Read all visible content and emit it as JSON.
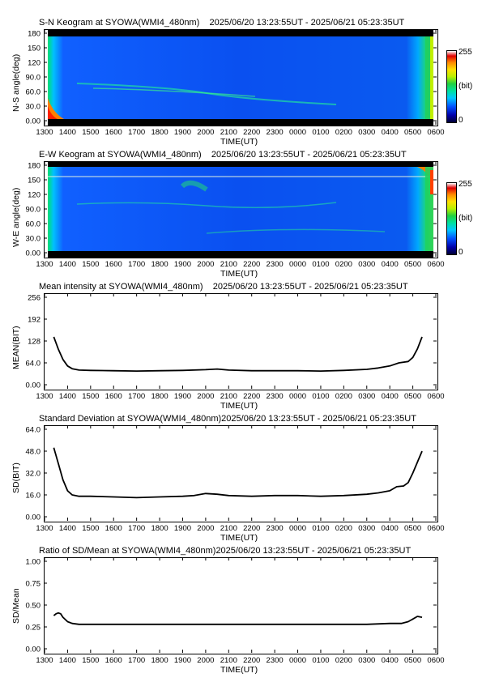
{
  "panels": [
    {
      "title": "S-N Keogram at SYOWA(WMI4_480nm)    2025/06/20 13:23:55UT - 2025/06/21 05:23:35UT",
      "ylabel": "N-S angle(deg)",
      "xlabel": "TIME(UT)"
    },
    {
      "title": "E-W Keogram at SYOWA(WMI4_480nm)    2025/06/20 13:23:55UT - 2025/06/21 05:23:35UT",
      "ylabel": "W-E angle(deg)",
      "xlabel": "TIME(UT)"
    },
    {
      "title": "Mean intensity at SYOWA(WMI4_480nm)    2025/06/20 13:23:55UT - 2025/06/21 05:23:35UT",
      "ylabel": "MEAN(BIT)",
      "xlabel": "TIME(UT)"
    },
    {
      "title": "Standard Deviation at SYOWA(WMI4_480nm)2025/06/20 13:23:55UT - 2025/06/21 05:23:35UT",
      "ylabel": "SD(BIT)",
      "xlabel": "TIME(UT)"
    },
    {
      "title": "Ratio of SD/Mean at SYOWA(WMI4_480nm)2025/06/20 13:23:55UT - 2025/06/21 05:23:35UT",
      "ylabel": "SD/Mean",
      "xlabel": "TIME(UT)"
    }
  ],
  "colorbar": {
    "max": "255",
    "unit": "(bit)",
    "min": "0"
  },
  "chart_data": [
    {
      "type": "heatmap",
      "title": "S-N Keogram at SYOWA(WMI4_480nm)    2025/06/20 13:23:55UT - 2025/06/21 05:23:35UT",
      "xlabel": "TIME(UT)",
      "ylabel": "N-S angle(deg)",
      "x_ticks": [
        "1300",
        "1400",
        "1500",
        "1600",
        "1700",
        "1800",
        "1900",
        "2000",
        "2100",
        "2200",
        "2300",
        "0000",
        "0100",
        "0200",
        "0300",
        "0400",
        "0500",
        "0600"
      ],
      "y_ticks": [
        "0.00",
        "30.0",
        "60.0",
        "90.0",
        "120",
        "150",
        "180"
      ],
      "ylim": [
        0,
        180
      ],
      "colorbar": {
        "min": 0,
        "max": 255,
        "unit": "(bit)"
      }
    },
    {
      "type": "heatmap",
      "title": "E-W Keogram at SYOWA(WMI4_480nm)    2025/06/20 13:23:55UT - 2025/06/21 05:23:35UT",
      "xlabel": "TIME(UT)",
      "ylabel": "W-E angle(deg)",
      "x_ticks": [
        "1300",
        "1400",
        "1500",
        "1600",
        "1700",
        "1800",
        "1900",
        "2000",
        "2100",
        "2200",
        "2300",
        "0000",
        "0100",
        "0200",
        "0300",
        "0400",
        "0500",
        "0600"
      ],
      "y_ticks": [
        "0.00",
        "30.0",
        "60.0",
        "90.0",
        "120",
        "150",
        "180"
      ],
      "ylim": [
        0,
        180
      ],
      "colorbar": {
        "min": 0,
        "max": 255,
        "unit": "(bit)"
      }
    },
    {
      "type": "line",
      "title": "Mean intensity at SYOWA(WMI4_480nm)    2025/06/20 13:23:55UT - 2025/06/21 05:23:35UT",
      "xlabel": "TIME(UT)",
      "ylabel": "MEAN(BIT)",
      "x_ticks": [
        "1300",
        "1400",
        "1500",
        "1600",
        "1700",
        "1800",
        "1900",
        "2000",
        "2100",
        "2200",
        "2300",
        "0000",
        "0100",
        "0200",
        "0300",
        "0400",
        "0500",
        "0600"
      ],
      "y_ticks": [
        "0.00",
        "64.0",
        "128",
        "192",
        "256"
      ],
      "ylim": [
        0,
        256
      ],
      "x_hours": [
        13.4,
        13.6,
        13.8,
        14.0,
        14.2,
        14.5,
        15.0,
        16.0,
        17.0,
        18.0,
        19.0,
        20.0,
        20.5,
        21.0,
        22.0,
        23.0,
        24.0,
        25.0,
        26.0,
        27.0,
        27.5,
        28.0,
        28.4,
        28.8,
        29.0,
        29.2,
        29.4
      ],
      "y": [
        140,
        104,
        74,
        55,
        47,
        43,
        42,
        41,
        40,
        41,
        42,
        44,
        46,
        43,
        41,
        41,
        41,
        40,
        42,
        45,
        49,
        55,
        64,
        68,
        80,
        105,
        140
      ]
    },
    {
      "type": "line",
      "title": "Standard Deviation at SYOWA(WMI4_480nm)2025/06/20 13:23:55UT - 2025/06/21 05:23:35UT",
      "xlabel": "TIME(UT)",
      "ylabel": "SD(BIT)",
      "x_ticks": [
        "1300",
        "1400",
        "1500",
        "1600",
        "1700",
        "1800",
        "1900",
        "2000",
        "2100",
        "2200",
        "2300",
        "0000",
        "0100",
        "0200",
        "0300",
        "0400",
        "0500",
        "0600"
      ],
      "y_ticks": [
        "0.00",
        "16.0",
        "32.0",
        "48.0",
        "64.0"
      ],
      "ylim": [
        0,
        64
      ],
      "x_hours": [
        13.4,
        13.6,
        13.8,
        14.0,
        14.2,
        14.5,
        15.0,
        16.0,
        17.0,
        18.0,
        19.0,
        19.5,
        20.0,
        20.5,
        21.0,
        22.0,
        23.0,
        24.0,
        25.0,
        26.0,
        27.0,
        27.5,
        28.0,
        28.3,
        28.6,
        28.8,
        29.0,
        29.2,
        29.4
      ],
      "y": [
        50.5,
        39,
        27,
        19,
        16,
        15,
        15,
        14.5,
        14,
        14.5,
        15,
        15.5,
        17,
        16.5,
        15.5,
        15,
        15.5,
        15.5,
        15,
        15.5,
        16.5,
        17.5,
        19,
        22,
        22.5,
        25,
        32,
        40,
        48
      ]
    },
    {
      "type": "line",
      "title": "Ratio of SD/Mean at SYOWA(WMI4_480nm)2025/06/20 13:23:55UT - 2025/06/21 05:23:35UT",
      "xlabel": "TIME(UT)",
      "ylabel": "SD/Mean",
      "x_ticks": [
        "1300",
        "1400",
        "1500",
        "1600",
        "1700",
        "1800",
        "1900",
        "2000",
        "2100",
        "2200",
        "2300",
        "0000",
        "0100",
        "0200",
        "0300",
        "0400",
        "0500",
        "0600"
      ],
      "y_ticks": [
        "0.00",
        "0.25",
        "0.50",
        "0.75",
        "1.00"
      ],
      "ylim": [
        0,
        1
      ],
      "x_hours": [
        13.4,
        13.5,
        13.6,
        13.7,
        13.8,
        14.0,
        14.2,
        14.5,
        15.0,
        16.0,
        17.0,
        18.0,
        19.0,
        20.0,
        21.0,
        22.0,
        23.0,
        24.0,
        25.0,
        26.0,
        27.0,
        28.0,
        28.5,
        28.8,
        29.0,
        29.2,
        29.4
      ],
      "y": [
        0.38,
        0.4,
        0.41,
        0.4,
        0.36,
        0.31,
        0.29,
        0.28,
        0.28,
        0.28,
        0.28,
        0.28,
        0.28,
        0.28,
        0.28,
        0.28,
        0.28,
        0.28,
        0.28,
        0.28,
        0.28,
        0.29,
        0.29,
        0.31,
        0.34,
        0.37,
        0.36
      ]
    }
  ]
}
